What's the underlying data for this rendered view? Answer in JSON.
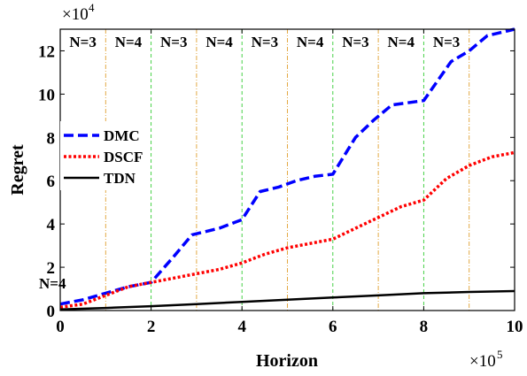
{
  "chart_data": {
    "type": "line",
    "xlabel": "Horizon",
    "ylabel": "Regret",
    "x_multiplier": "×10",
    "x_multiplier_exp": "5",
    "y_multiplier": "×10",
    "y_multiplier_exp": "4",
    "xlim": [
      0,
      1000000
    ],
    "ylim": [
      0,
      130000
    ],
    "x_ticks": [
      0,
      200000,
      400000,
      600000,
      800000,
      1000000
    ],
    "x_tick_labels": [
      "0",
      "2",
      "4",
      "6",
      "8",
      "10"
    ],
    "y_ticks": [
      0,
      20000,
      40000,
      60000,
      80000,
      100000,
      120000
    ],
    "y_tick_labels": [
      "0",
      "2",
      "4",
      "6",
      "8",
      "10",
      "12"
    ],
    "legend_position": "left",
    "grid": false,
    "vlines_green": [
      200000,
      400000,
      600000,
      800000
    ],
    "vlines_orange": [
      100000,
      300000,
      500000,
      700000,
      900000
    ],
    "phase_labels": [
      {
        "text": "N=3",
        "x": 50000
      },
      {
        "text": "N=4",
        "x": 150000
      },
      {
        "text": "N=3",
        "x": 250000
      },
      {
        "text": "N=4",
        "x": 350000
      },
      {
        "text": "N=3",
        "x": 450000
      },
      {
        "text": "N=4",
        "x": 550000
      },
      {
        "text": "N=3",
        "x": 650000
      },
      {
        "text": "N=4",
        "x": 750000
      },
      {
        "text": "N=3",
        "x": 850000
      }
    ],
    "extra_label": {
      "text": "N=4"
    },
    "series": [
      {
        "name": "DMC",
        "color": "#0000ff",
        "style": "dashed",
        "points": [
          [
            0,
            3000
          ],
          [
            50000,
            5000
          ],
          [
            100000,
            8000
          ],
          [
            150000,
            11000
          ],
          [
            200000,
            13000
          ],
          [
            250000,
            25000
          ],
          [
            290000,
            35000
          ],
          [
            350000,
            38000
          ],
          [
            400000,
            42000
          ],
          [
            440000,
            55000
          ],
          [
            480000,
            57000
          ],
          [
            520000,
            60000
          ],
          [
            560000,
            62000
          ],
          [
            600000,
            63000
          ],
          [
            650000,
            80000
          ],
          [
            690000,
            88000
          ],
          [
            730000,
            95000
          ],
          [
            800000,
            97000
          ],
          [
            860000,
            115000
          ],
          [
            900000,
            120000
          ],
          [
            940000,
            127000
          ],
          [
            1000000,
            130000
          ]
        ]
      },
      {
        "name": "DSCF",
        "color": "#ff0000",
        "style": "dotted",
        "points": [
          [
            0,
            1500
          ],
          [
            50000,
            3000
          ],
          [
            100000,
            7000
          ],
          [
            150000,
            11000
          ],
          [
            200000,
            13000
          ],
          [
            250000,
            15000
          ],
          [
            300000,
            17000
          ],
          [
            350000,
            19000
          ],
          [
            400000,
            22000
          ],
          [
            450000,
            26000
          ],
          [
            500000,
            29000
          ],
          [
            550000,
            31000
          ],
          [
            600000,
            33000
          ],
          [
            650000,
            38000
          ],
          [
            700000,
            43000
          ],
          [
            750000,
            48000
          ],
          [
            800000,
            51000
          ],
          [
            850000,
            61000
          ],
          [
            900000,
            67000
          ],
          [
            950000,
            71000
          ],
          [
            1000000,
            73000
          ]
        ]
      },
      {
        "name": "TDN",
        "color": "#000000",
        "style": "solid",
        "points": [
          [
            0,
            500
          ],
          [
            100000,
            1200
          ],
          [
            200000,
            2000
          ],
          [
            300000,
            3000
          ],
          [
            400000,
            4000
          ],
          [
            500000,
            5000
          ],
          [
            600000,
            6000
          ],
          [
            700000,
            7000
          ],
          [
            800000,
            8000
          ],
          [
            900000,
            8600
          ],
          [
            1000000,
            9000
          ]
        ]
      }
    ]
  }
}
